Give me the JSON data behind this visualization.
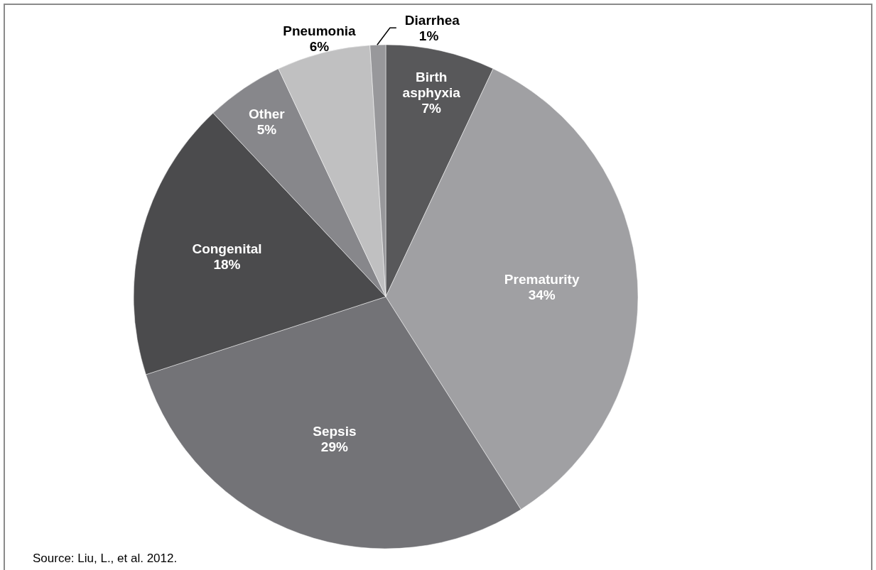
{
  "chart_data": {
    "type": "pie",
    "categories": [
      "Birth asphyxia",
      "Prematurity",
      "Sepsis",
      "Congenital",
      "Other",
      "Pneumonia",
      "Diarrhea"
    ],
    "values": [
      7,
      34,
      29,
      18,
      5,
      6,
      1
    ],
    "colors": [
      "#58585a",
      "#a0a0a3",
      "#737377",
      "#4b4b4d",
      "#87878b",
      "#c0c0c1",
      "#98989b"
    ],
    "value_labels": [
      "7%",
      "34%",
      "29%",
      "18%",
      "5%",
      "6%",
      "1%"
    ],
    "annotations": [
      "Source: Liu, L., et al. 2012."
    ]
  }
}
